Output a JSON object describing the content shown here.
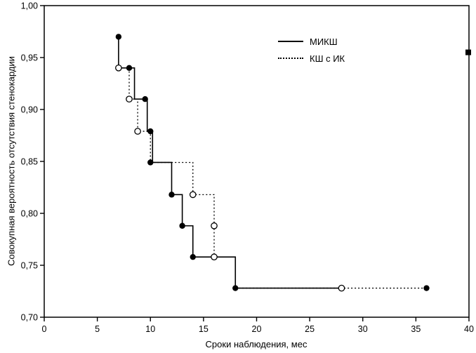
{
  "page": {
    "background": "#ffffff",
    "ink_color": "#000000"
  },
  "chart_data": {
    "type": "line",
    "subtype": "kaplan-meier-step",
    "title": "",
    "xlabel": "Сроки наблюдения, мес",
    "ylabel": "Совокупная вероятность отсутствия стенокардии",
    "xlim": [
      0,
      40
    ],
    "ylim": [
      0.7,
      1.0
    ],
    "x_ticks": [
      0,
      5,
      10,
      15,
      20,
      25,
      30,
      35,
      40
    ],
    "x_tick_labels": [
      "0",
      "5",
      "10",
      "15",
      "20",
      "25",
      "30",
      "35",
      "40"
    ],
    "y_ticks": [
      0.7,
      0.75,
      0.8,
      0.85,
      0.9,
      0.95,
      1.0
    ],
    "y_tick_labels": [
      "0,70",
      "0,75",
      "0,80",
      "0,85",
      "0,90",
      "0,95",
      "1,00"
    ],
    "grid": false,
    "legend": {
      "position": "top-center-right",
      "entries": [
        {
          "label": "МИКШ",
          "line": "solid",
          "marker": "filled-circle"
        },
        {
          "label": "КШ с ИК",
          "line": "dotted",
          "marker": "open-circle"
        }
      ]
    },
    "series": [
      {
        "name": "МИКШ",
        "line": "solid",
        "color": "#000000",
        "marker": "filled-circle",
        "path": [
          [
            7,
            0.97
          ],
          [
            7,
            0.94
          ],
          [
            8.5,
            0.94
          ],
          [
            8.5,
            0.91
          ],
          [
            9.7,
            0.91
          ],
          [
            9.7,
            0.879
          ],
          [
            10.2,
            0.879
          ],
          [
            10.2,
            0.849
          ],
          [
            12,
            0.849
          ],
          [
            12,
            0.818
          ],
          [
            13,
            0.818
          ],
          [
            13,
            0.788
          ],
          [
            14,
            0.788
          ],
          [
            14,
            0.758
          ],
          [
            18,
            0.758
          ],
          [
            18,
            0.728
          ],
          [
            28,
            0.728
          ]
        ],
        "markers": [
          [
            7,
            0.97
          ],
          [
            8,
            0.94
          ],
          [
            9.5,
            0.91
          ],
          [
            10,
            0.879
          ],
          [
            10,
            0.849
          ],
          [
            12,
            0.818
          ],
          [
            13,
            0.788
          ],
          [
            14,
            0.758
          ],
          [
            18,
            0.728
          ],
          [
            36,
            0.728
          ]
        ]
      },
      {
        "name": "КШ с ИК",
        "line": "dotted",
        "color": "#000000",
        "marker": "open-circle",
        "path": [
          [
            7,
            0.94
          ],
          [
            8,
            0.94
          ],
          [
            8,
            0.91
          ],
          [
            8.8,
            0.91
          ],
          [
            8.8,
            0.879
          ],
          [
            10,
            0.879
          ],
          [
            10,
            0.849
          ],
          [
            14,
            0.849
          ],
          [
            14,
            0.818
          ],
          [
            16,
            0.818
          ],
          [
            16,
            0.758
          ],
          [
            18,
            0.758
          ],
          [
            18,
            0.728
          ],
          [
            36,
            0.728
          ]
        ],
        "markers": [
          [
            7,
            0.94
          ],
          [
            8,
            0.91
          ],
          [
            8.8,
            0.879
          ],
          [
            14,
            0.818
          ],
          [
            16,
            0.788
          ],
          [
            16,
            0.758
          ],
          [
            28,
            0.728
          ]
        ]
      }
    ],
    "edge_marks": [
      [
        40,
        0.955
      ]
    ]
  }
}
